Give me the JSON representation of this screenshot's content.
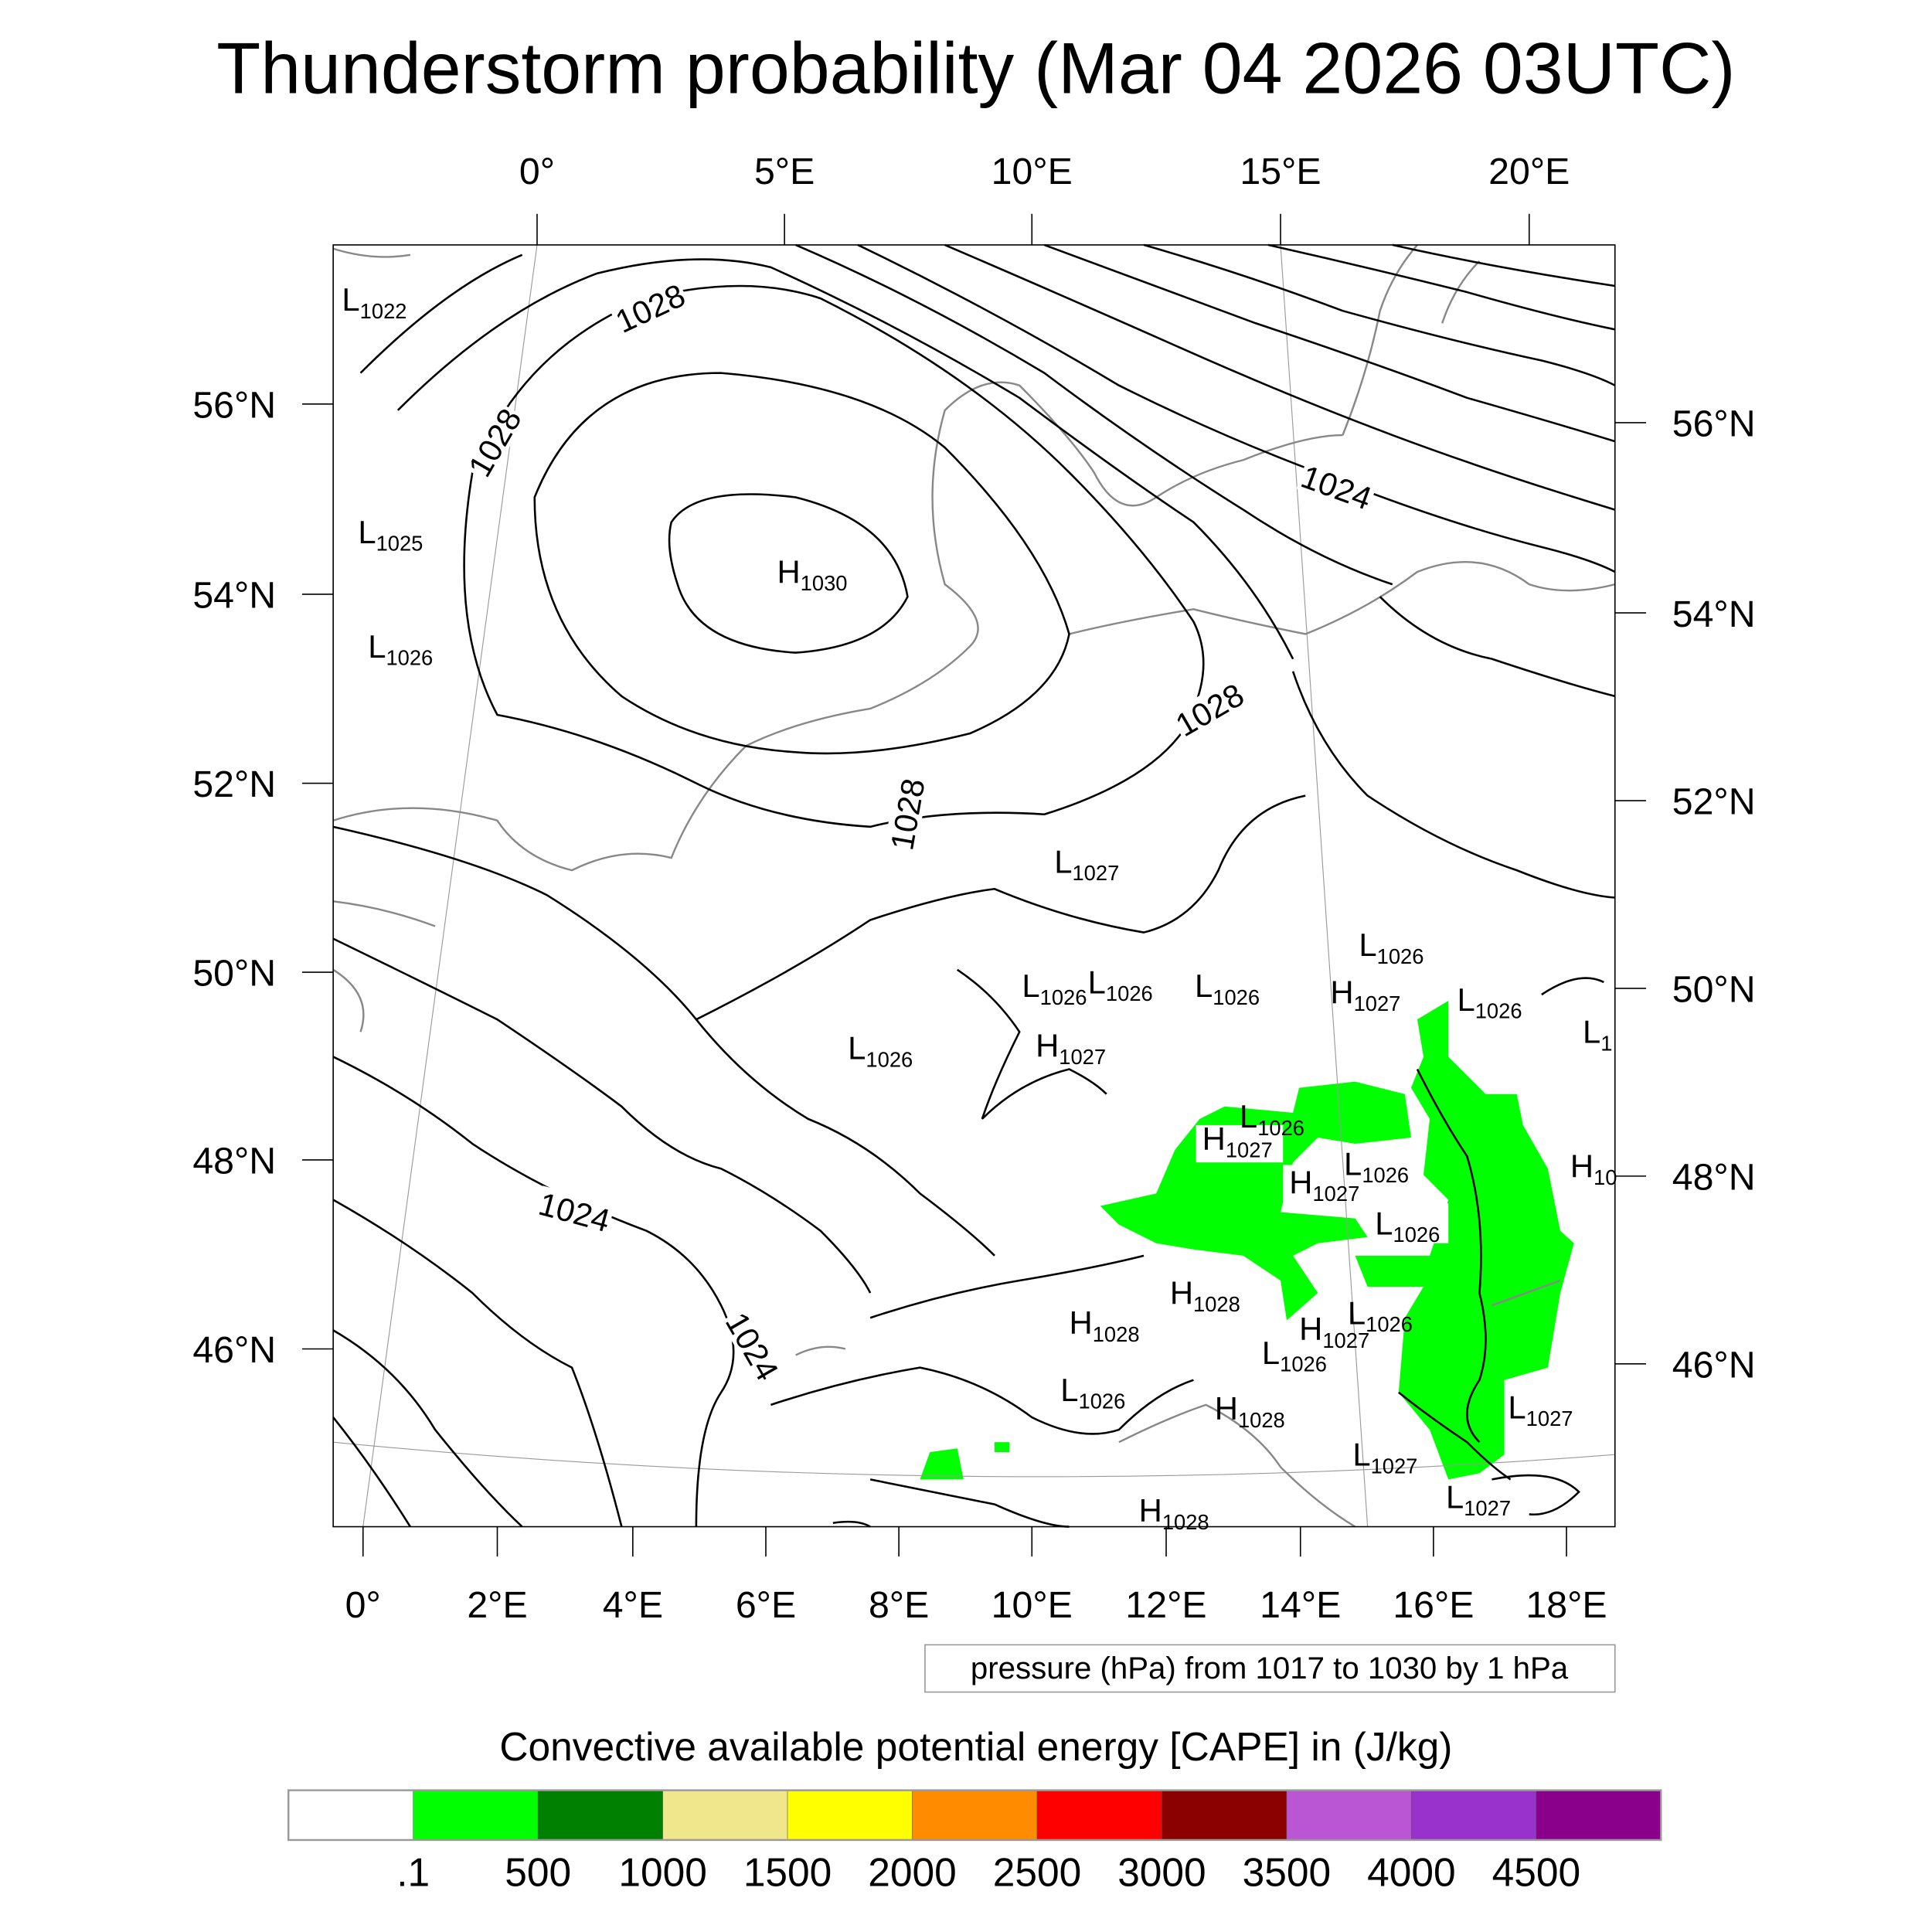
{
  "title": "Thunderstorm probability (Mar 04 2026 03UTC)",
  "map": {
    "top_lon_labels": [
      "0°",
      "5°E",
      "10°E",
      "15°E",
      "20°E"
    ],
    "bottom_lon_labels": [
      "0°",
      "2°E",
      "4°E",
      "6°E",
      "8°E",
      "10°E",
      "12°E",
      "14°E",
      "16°E",
      "18°E"
    ],
    "left_lat_labels": [
      "56°N",
      "54°N",
      "52°N",
      "50°N",
      "48°N",
      "46°N"
    ],
    "right_lat_labels": [
      "56°N",
      "54°N",
      "52°N",
      "50°N",
      "48°N",
      "46°N"
    ],
    "cape_color": "#00ff00",
    "pressure_centers": [
      {
        "type": "L",
        "value": "1022"
      },
      {
        "type": "L",
        "value": "1025"
      },
      {
        "type": "L",
        "value": "1026"
      },
      {
        "type": "H",
        "value": "1030"
      },
      {
        "type": "L",
        "value": "1027"
      },
      {
        "type": "L",
        "value": "1026"
      },
      {
        "type": "H",
        "value": "1027"
      },
      {
        "type": "L",
        "value": "1026"
      },
      {
        "type": "L",
        "value": "1026"
      },
      {
        "type": "L",
        "value": "1026"
      },
      {
        "type": "L",
        "value": "1026"
      },
      {
        "type": "H",
        "value": "1027"
      },
      {
        "type": "L",
        "value": "1026"
      },
      {
        "type": "L",
        "value": "1026"
      },
      {
        "type": "H",
        "value": "1027"
      },
      {
        "type": "L",
        "value": "1026"
      },
      {
        "type": "H",
        "value": "1027"
      },
      {
        "type": "L",
        "value": "1026"
      },
      {
        "type": "H",
        "value": "1028"
      },
      {
        "type": "H",
        "value": "1028"
      },
      {
        "type": "L",
        "value": "1026"
      },
      {
        "type": "H",
        "value": "1027"
      },
      {
        "type": "L",
        "value": "1026"
      },
      {
        "type": "L",
        "value": "1026"
      },
      {
        "type": "H",
        "value": "1028"
      },
      {
        "type": "L",
        "value": "1027"
      },
      {
        "type": "L",
        "value": "1027"
      },
      {
        "type": "L",
        "value": "1027"
      },
      {
        "type": "H",
        "value": "1028"
      },
      {
        "type": "L",
        "value": "1"
      },
      {
        "type": "H",
        "value": "10"
      }
    ],
    "isobar_labels": [
      "1028",
      "1028",
      "1024",
      "1028",
      "1028",
      "1024",
      "1024"
    ]
  },
  "info_box": "pressure (hPa) from 1017 to 1030 by 1 hPa",
  "colorbar": {
    "title": "Convective available potential energy [CAPE] in (J/kg)",
    "colors": [
      "#ffffff",
      "#00ff00",
      "#008000",
      "#f0e68c",
      "#ffff00",
      "#ff8c00",
      "#ff0000",
      "#8b0000",
      "#ba55d3",
      "#9932cc",
      "#8b008b"
    ],
    "labels": [
      ".1",
      "500",
      "1000",
      "1500",
      "2000",
      "2500",
      "3000",
      "3500",
      "4000",
      "4500"
    ]
  }
}
